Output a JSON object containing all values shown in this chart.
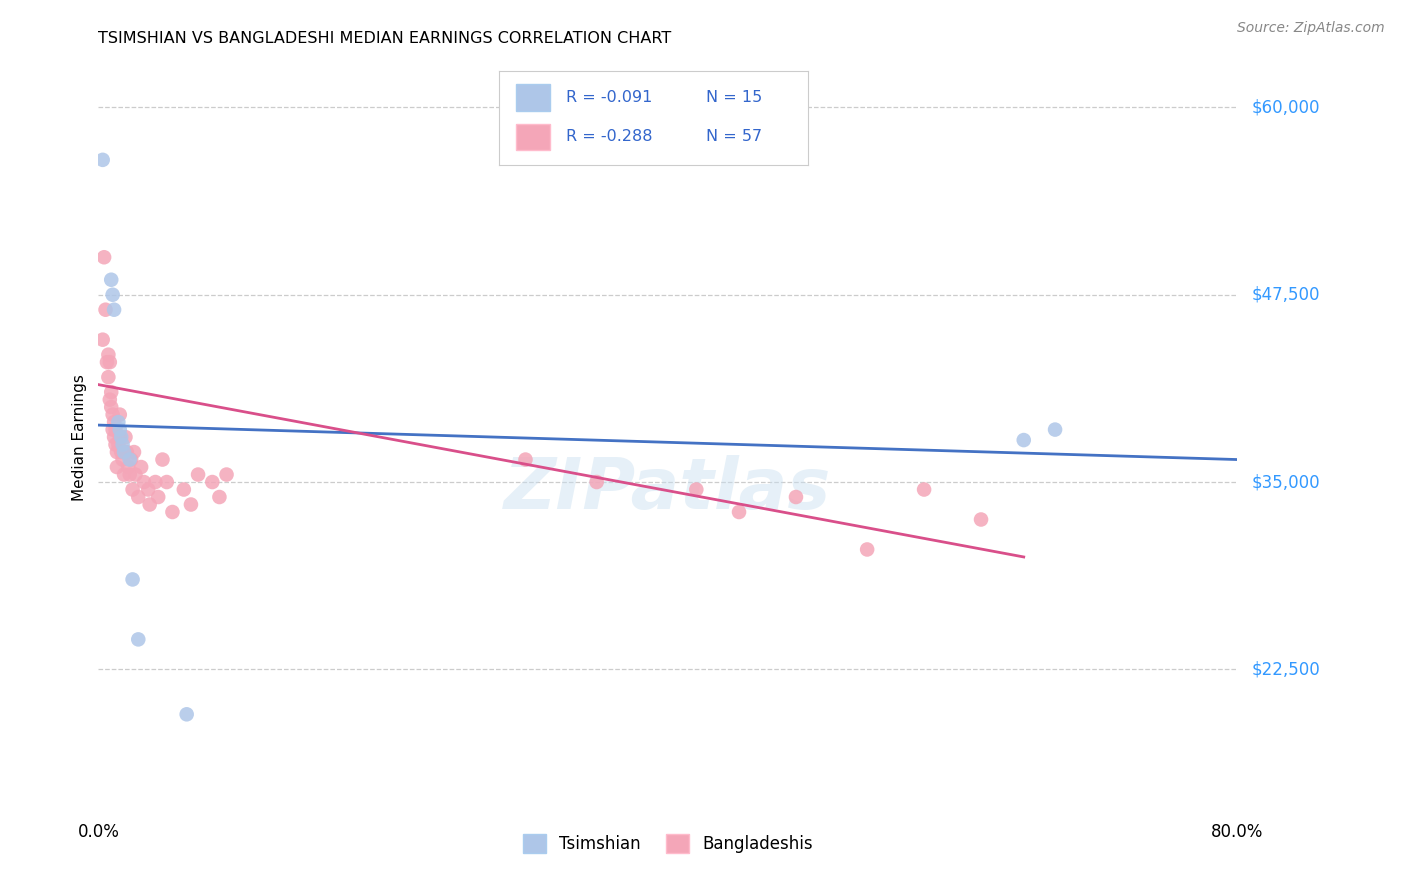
{
  "title": "TSIMSHIAN VS BANGLADESHI MEDIAN EARNINGS CORRELATION CHART",
  "source": "Source: ZipAtlas.com",
  "ylabel": "Median Earnings",
  "xlim": [
    0.0,
    0.8
  ],
  "ylim": [
    13000,
    63000
  ],
  "watermark": "ZIPatlas",
  "legend_r1": "-0.091",
  "legend_n1": "15",
  "legend_r2": "-0.288",
  "legend_n2": "57",
  "legend_label1": "Tsimshian",
  "legend_label2": "Bangladeshis",
  "blue_scatter_color": "#aec6e8",
  "pink_scatter_color": "#f4a6b8",
  "blue_line_color": "#4472c4",
  "pink_line_color": "#d94f8a",
  "legend_text_color": "#3366cc",
  "right_label_color": "#3399ff",
  "right_ytick_values": [
    22500,
    35000,
    47500,
    60000
  ],
  "right_ytick_labels": [
    "$22,500",
    "$35,000",
    "$47,500",
    "$60,000"
  ],
  "grid_values": [
    22500,
    35000,
    47500,
    60000
  ],
  "tsimshian_x": [
    0.003,
    0.009,
    0.01,
    0.011,
    0.014,
    0.015,
    0.016,
    0.017,
    0.018,
    0.022,
    0.024,
    0.028,
    0.062,
    0.65,
    0.672
  ],
  "tsimshian_y": [
    56500,
    48500,
    47500,
    46500,
    39000,
    38500,
    38000,
    37500,
    37000,
    36500,
    28500,
    24500,
    19500,
    37800,
    38500
  ],
  "bangladeshi_x": [
    0.003,
    0.004,
    0.005,
    0.006,
    0.007,
    0.007,
    0.008,
    0.008,
    0.009,
    0.009,
    0.01,
    0.01,
    0.011,
    0.011,
    0.012,
    0.012,
    0.013,
    0.013,
    0.014,
    0.015,
    0.015,
    0.016,
    0.017,
    0.018,
    0.018,
    0.019,
    0.02,
    0.021,
    0.022,
    0.023,
    0.024,
    0.025,
    0.026,
    0.028,
    0.03,
    0.032,
    0.035,
    0.036,
    0.04,
    0.042,
    0.045,
    0.048,
    0.052,
    0.06,
    0.065,
    0.07,
    0.08,
    0.085,
    0.09,
    0.3,
    0.35,
    0.42,
    0.45,
    0.49,
    0.54,
    0.58,
    0.62
  ],
  "bangladeshi_y": [
    44500,
    50000,
    46500,
    43000,
    43500,
    42000,
    43000,
    40500,
    41000,
    40000,
    39500,
    38500,
    39000,
    38000,
    38500,
    37500,
    37000,
    36000,
    37500,
    39500,
    38000,
    37000,
    36500,
    37000,
    35500,
    38000,
    37000,
    36000,
    35500,
    36500,
    34500,
    37000,
    35500,
    34000,
    36000,
    35000,
    34500,
    33500,
    35000,
    34000,
    36500,
    35000,
    33000,
    34500,
    33500,
    35500,
    35000,
    34000,
    35500,
    36500,
    35000,
    34500,
    33000,
    34000,
    30500,
    34500,
    32500
  ]
}
